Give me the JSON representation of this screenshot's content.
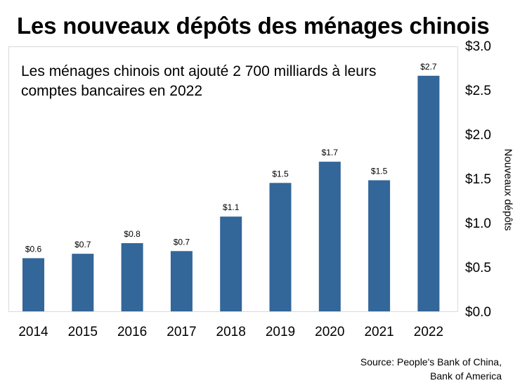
{
  "title": "Les nouveaux dépôts des ménages chinois",
  "annotation": "Les ménages chinois ont ajouté 2 700 milliards à leurs comptes bancaires en 2022",
  "source": {
    "line1": "Source: People's Bank of China,",
    "line2": "Bank of America"
  },
  "colors": {
    "bar": "#336699",
    "frame": "#d9d9d9"
  },
  "chart_data": {
    "type": "bar",
    "categories": [
      "2014",
      "2015",
      "2016",
      "2017",
      "2018",
      "2019",
      "2020",
      "2021",
      "2022"
    ],
    "values": [
      0.6,
      0.65,
      0.77,
      0.68,
      1.07,
      1.45,
      1.69,
      1.48,
      2.66
    ],
    "data_labels": [
      "$0.6",
      "$0.7",
      "$0.8",
      "$0.7",
      "$1.1",
      "$1.5",
      "$1.7",
      "$1.5",
      "$2.7"
    ],
    "title": "Les nouveaux dépôts des ménages chinois",
    "xlabel": "",
    "ylabel": "Nouveaux dépôts",
    "ylim": [
      0,
      3.0
    ],
    "y_ticks": [
      0.0,
      0.5,
      1.0,
      1.5,
      2.0,
      2.5,
      3.0
    ],
    "y_tick_labels": [
      "$0.0",
      "$0.5",
      "$1.0",
      "$1.5",
      "$2.0",
      "$2.5",
      "$3.0"
    ],
    "y_axis_side": "right",
    "grid": false,
    "legend": "none"
  }
}
